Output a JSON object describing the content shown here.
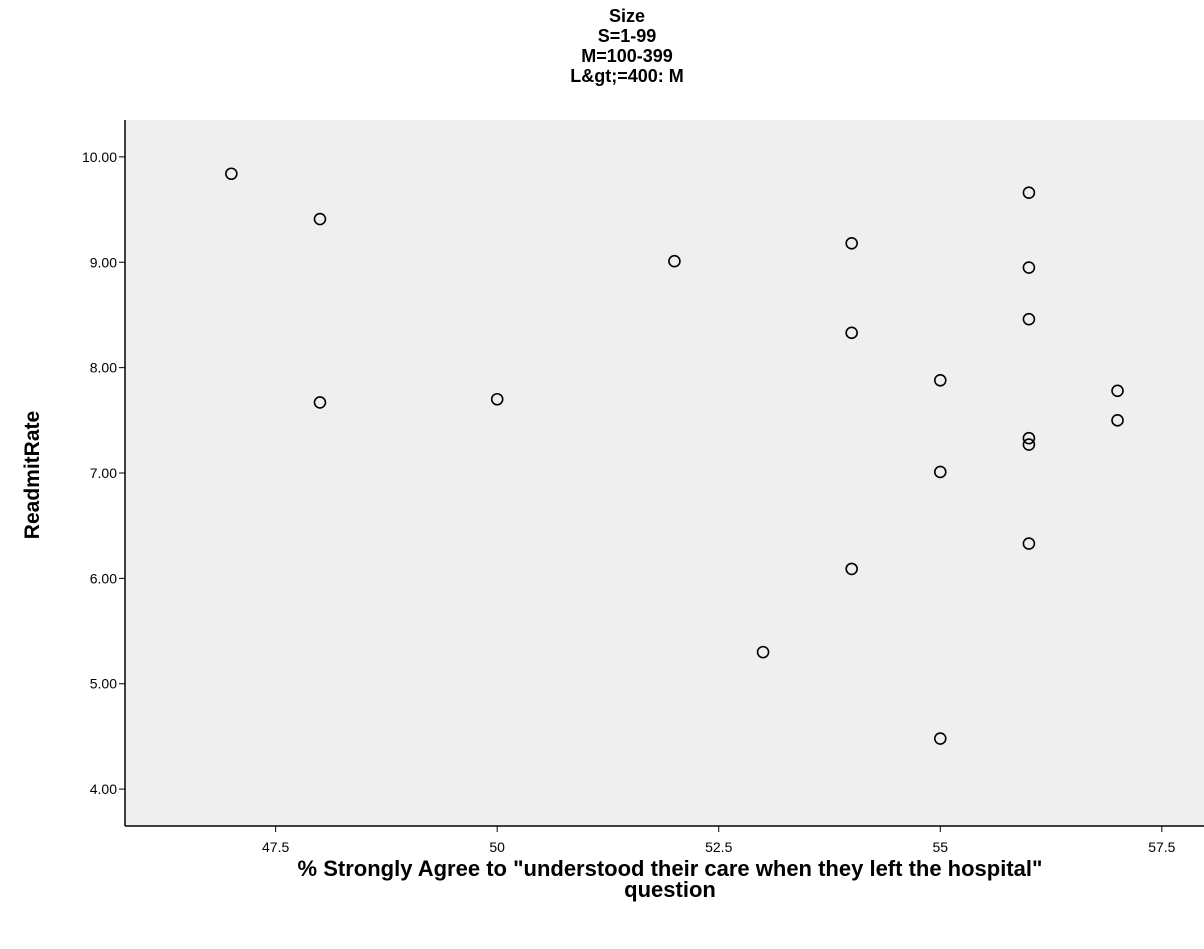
{
  "chart_data": {
    "type": "scatter",
    "title_lines": [
      "Size",
      "S=1-99",
      "M=100-399",
      "L&gt;=400: M"
    ],
    "xlabel_lines": [
      "% Strongly Agree to \"understood their care when they left the hospital\"",
      "question"
    ],
    "ylabel": "ReadmitRate",
    "xlim": [
      45.8,
      58.1
    ],
    "ylim": [
      3.65,
      10.35
    ],
    "x_ticks": [
      {
        "value": 47.5,
        "label": "47.5"
      },
      {
        "value": 50,
        "label": "50"
      },
      {
        "value": 52.5,
        "label": "52.5"
      },
      {
        "value": 55,
        "label": "55"
      },
      {
        "value": 57.5,
        "label": "57.5"
      }
    ],
    "y_ticks": [
      {
        "value": 4,
        "label": "4.00"
      },
      {
        "value": 5,
        "label": "5.00"
      },
      {
        "value": 6,
        "label": "6.00"
      },
      {
        "value": 7,
        "label": "7.00"
      },
      {
        "value": 8,
        "label": "8.00"
      },
      {
        "value": 9,
        "label": "9.00"
      },
      {
        "value": 10,
        "label": "10.00"
      }
    ],
    "grid": false,
    "plot_background": "#efefef",
    "marker": "open-circle",
    "points": [
      {
        "x": 47,
        "y": 9.84
      },
      {
        "x": 48,
        "y": 9.41
      },
      {
        "x": 48,
        "y": 7.67
      },
      {
        "x": 50,
        "y": 7.7
      },
      {
        "x": 52,
        "y": 9.01
      },
      {
        "x": 53,
        "y": 5.3
      },
      {
        "x": 54,
        "y": 9.18
      },
      {
        "x": 54,
        "y": 8.33
      },
      {
        "x": 54,
        "y": 6.09
      },
      {
        "x": 55,
        "y": 7.88
      },
      {
        "x": 55,
        "y": 7.01
      },
      {
        "x": 55,
        "y": 4.48
      },
      {
        "x": 56,
        "y": 9.66
      },
      {
        "x": 56,
        "y": 8.95
      },
      {
        "x": 56,
        "y": 8.46
      },
      {
        "x": 56,
        "y": 7.33
      },
      {
        "x": 56,
        "y": 7.27
      },
      {
        "x": 56,
        "y": 6.33
      },
      {
        "x": 57,
        "y": 7.78
      },
      {
        "x": 57,
        "y": 7.5
      }
    ]
  }
}
